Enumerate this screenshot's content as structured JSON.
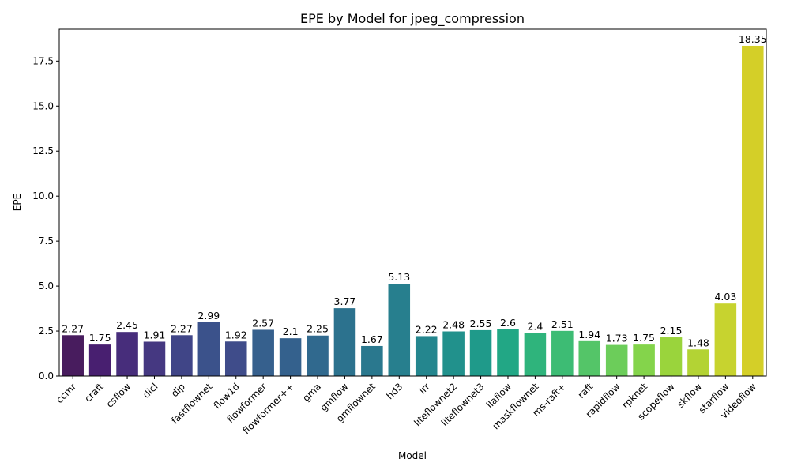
{
  "chart_data": {
    "type": "bar",
    "title": "EPE by Model for jpeg_compression",
    "xlabel": "Model",
    "ylabel": "EPE",
    "ylim": [
      0,
      19.27
    ],
    "yticks": [
      "0.0",
      "2.5",
      "5.0",
      "7.5",
      "10.0",
      "12.5",
      "15.0",
      "17.5"
    ],
    "categories": [
      "ccmr",
      "craft",
      "csflow",
      "dicl",
      "dip",
      "fastflownet",
      "flow1d",
      "flowformer",
      "flowformer++",
      "gma",
      "gmflow",
      "gmflownet",
      "hd3",
      "irr",
      "liteflownet2",
      "liteflownet3",
      "llaflow",
      "maskflownet",
      "ms-raft+",
      "raft",
      "rapidflow",
      "rpknet",
      "scopeflow",
      "skflow",
      "starflow",
      "videoflow"
    ],
    "values": [
      2.27,
      1.75,
      2.45,
      1.91,
      2.27,
      2.99,
      1.92,
      2.57,
      2.1,
      2.25,
      3.77,
      1.67,
      5.13,
      2.22,
      2.48,
      2.55,
      2.6,
      2.4,
      2.51,
      1.94,
      1.73,
      1.75,
      2.15,
      1.48,
      4.03,
      18.35
    ],
    "value_labels": [
      "2.27",
      "1.75",
      "2.45",
      "1.91",
      "2.27",
      "2.99",
      "1.92",
      "2.57",
      "2.1",
      "2.25",
      "3.77",
      "1.67",
      "5.13",
      "2.22",
      "2.48",
      "2.55",
      "2.6",
      "2.4",
      "2.51",
      "1.94",
      "1.73",
      "1.75",
      "2.15",
      "1.48",
      "4.03",
      "18.35"
    ],
    "colors": [
      "#481c5e",
      "#481f70",
      "#472d7b",
      "#453881",
      "#404587",
      "#3b528b",
      "#3f4c8a",
      "#36608d",
      "#34618d",
      "#30698e",
      "#2c728e",
      "#2a788e",
      "#277f8e",
      "#24868e",
      "#21918c",
      "#1f9a8a",
      "#22a785",
      "#2fb47c",
      "#3dbc74",
      "#54c568",
      "#6ccd5a",
      "#84d44b",
      "#9ad43c",
      "#b3d334",
      "#c7d32f",
      "#d4cf28"
    ],
    "grid": false,
    "legend": "none"
  }
}
